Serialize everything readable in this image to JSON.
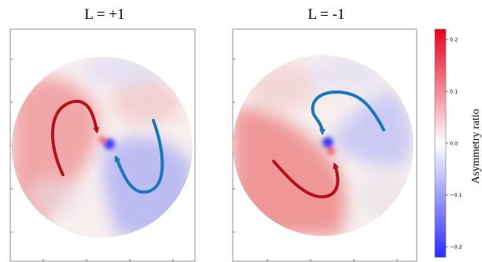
{
  "chart_data": {
    "type": "heatmap",
    "panels": [
      {
        "title": "L = +1",
        "pattern": "two-lobe asymmetry map: positive (red) lobe on the left, negative (blue) lobe on the lower right, curving arrows circulating clockwise toward the center"
      },
      {
        "title": "L = -1",
        "pattern": "two-lobe asymmetry map: positive (red) lobe on the lower left, negative (blue) lobe on the upper right, curving arrows circulating toward the center"
      }
    ],
    "colorbar": {
      "label": "Asymmetry ratio",
      "range": [
        -0.22,
        0.22
      ],
      "ticks": [
        0.2,
        0.1,
        0.0,
        -0.1,
        -0.2
      ],
      "tick_labels": [
        "0.2",
        "0.1",
        "0.0",
        "−0.1",
        "−0.2"
      ],
      "colormap": "bwr",
      "color_max": "#e8001c",
      "color_mid": "#ffffff",
      "color_min": "#2b2bff"
    },
    "arrow_colors": {
      "red": "#b5121b",
      "blue": "#1a78b8"
    }
  }
}
